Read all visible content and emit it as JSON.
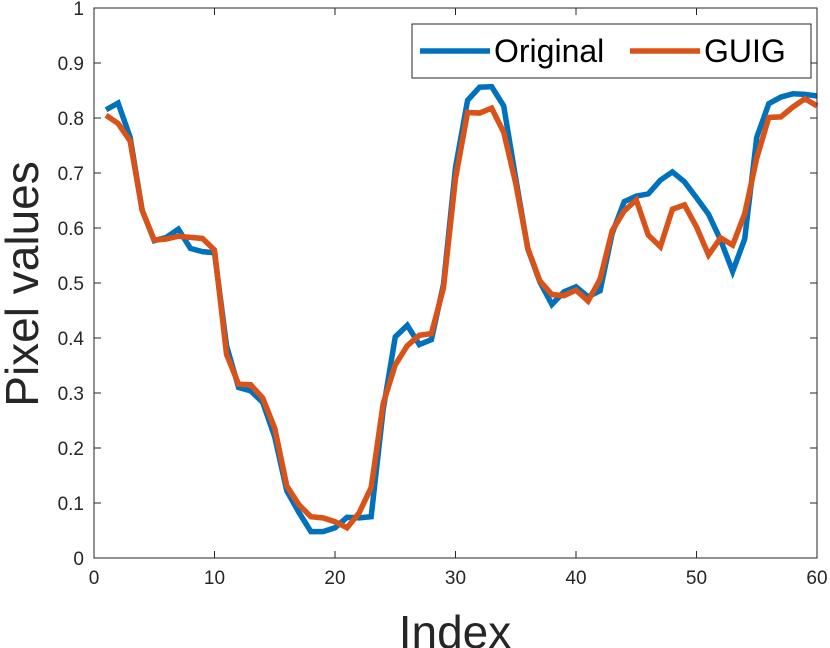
{
  "chart_data": {
    "type": "line",
    "xlabel": "Index",
    "ylabel": "Pixel values",
    "xlim": [
      0,
      60
    ],
    "ylim": [
      0,
      1
    ],
    "xticks": [
      "0",
      "10",
      "20",
      "30",
      "40",
      "50",
      "60"
    ],
    "yticks": [
      "0",
      "0.1",
      "0.2",
      "0.3",
      "0.4",
      "0.5",
      "0.6",
      "0.7",
      "0.8",
      "0.9",
      "1"
    ],
    "grid": false,
    "legend_position": "top-right",
    "x": [
      1,
      2,
      3,
      4,
      5,
      6,
      7,
      8,
      9,
      10,
      11,
      12,
      13,
      14,
      15,
      16,
      17,
      18,
      19,
      20,
      21,
      22,
      23,
      24,
      25,
      26,
      27,
      28,
      29,
      30,
      31,
      32,
      33,
      34,
      35,
      36,
      37,
      38,
      39,
      40,
      41,
      42,
      43,
      44,
      45,
      46,
      47,
      48,
      49,
      50,
      51,
      52,
      53,
      54,
      55,
      56,
      57,
      58,
      59,
      60
    ],
    "series": [
      {
        "name": "Original",
        "color": "#0072BD",
        "values": [
          0.815,
          0.827,
          0.765,
          0.632,
          0.577,
          0.583,
          0.598,
          0.563,
          0.557,
          0.555,
          0.386,
          0.31,
          0.304,
          0.283,
          0.22,
          0.122,
          0.083,
          0.048,
          0.048,
          0.055,
          0.074,
          0.073,
          0.075,
          0.27,
          0.402,
          0.423,
          0.388,
          0.397,
          0.497,
          0.71,
          0.832,
          0.856,
          0.857,
          0.822,
          0.69,
          0.562,
          0.502,
          0.461,
          0.484,
          0.493,
          0.475,
          0.486,
          0.59,
          0.648,
          0.658,
          0.662,
          0.687,
          0.702,
          0.684,
          0.655,
          0.625,
          0.578,
          0.521,
          0.58,
          0.765,
          0.826,
          0.838,
          0.844,
          0.843,
          0.84
        ]
      },
      {
        "name": "GUIG",
        "color": "#D95319",
        "values": [
          0.805,
          0.79,
          0.758,
          0.632,
          0.578,
          0.58,
          0.585,
          0.583,
          0.581,
          0.56,
          0.37,
          0.316,
          0.315,
          0.291,
          0.236,
          0.131,
          0.097,
          0.075,
          0.073,
          0.066,
          0.055,
          0.082,
          0.128,
          0.281,
          0.351,
          0.386,
          0.405,
          0.408,
          0.491,
          0.69,
          0.81,
          0.809,
          0.818,
          0.774,
          0.681,
          0.563,
          0.504,
          0.479,
          0.477,
          0.487,
          0.467,
          0.507,
          0.595,
          0.631,
          0.651,
          0.587,
          0.566,
          0.634,
          0.642,
          0.602,
          0.551,
          0.582,
          0.569,
          0.626,
          0.727,
          0.801,
          0.802,
          0.82,
          0.835,
          0.822
        ]
      }
    ]
  }
}
